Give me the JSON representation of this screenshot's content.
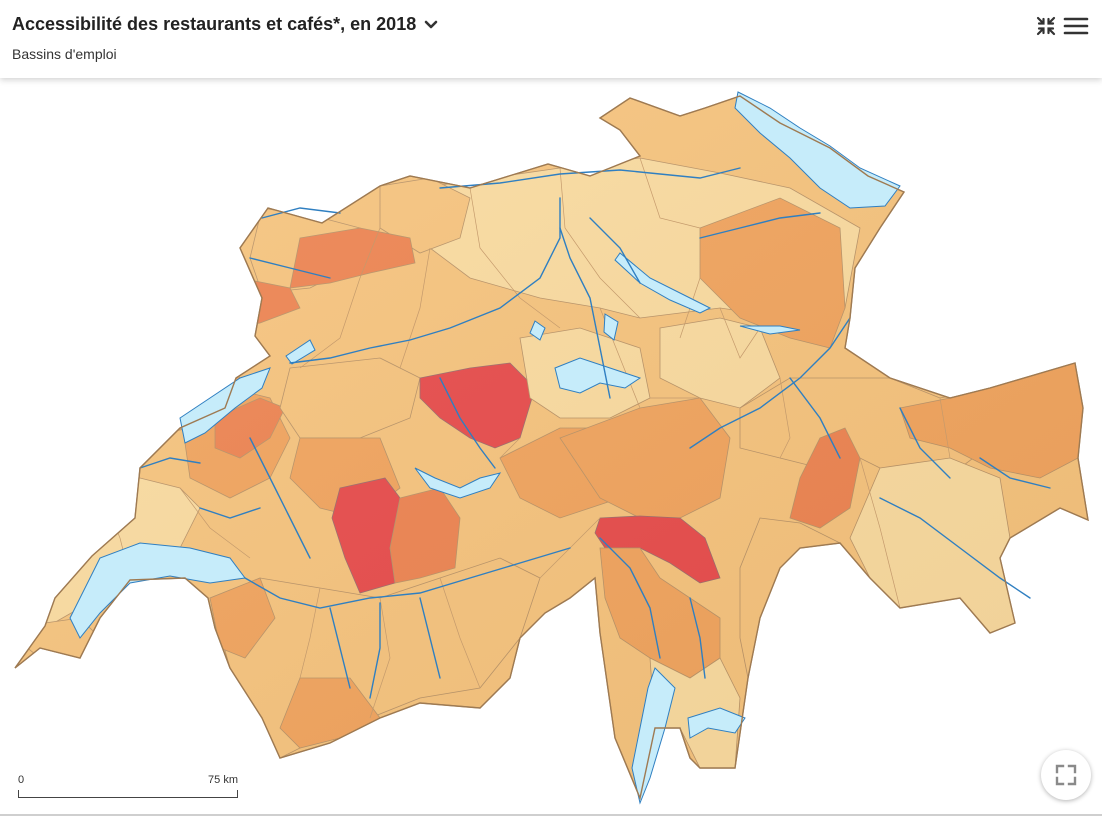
{
  "header": {
    "title": "Accessibilité des restaurants et cafés*, en 2018",
    "subtitle": "Bassins d'emploi"
  },
  "icons": {
    "title_chevron": "chevron-down-icon",
    "collapse": "collapse-icon",
    "menu": "hamburger-menu-icon",
    "fullscreen": "fullscreen-icon"
  },
  "scale_bar": {
    "start_label": "0",
    "end_label": "75 km"
  },
  "colors": {
    "class_lightest": "#fbdca0",
    "class_light": "#f7c47d",
    "class_medium": "#f2a45d",
    "class_dark": "#ee8350",
    "class_darkest": "#e8494a",
    "lakes": "#c6ecfa",
    "rivers": "#2f7fc1",
    "borders": "#b08a5e"
  }
}
